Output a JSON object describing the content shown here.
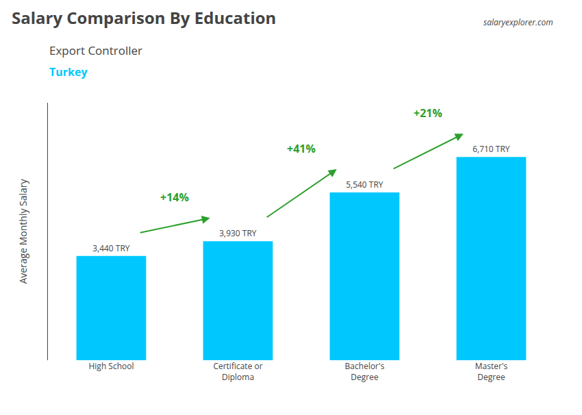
{
  "chart_data": {
    "type": "bar",
    "title": "Salary Comparison By Education",
    "subtitle": "Export Controller",
    "ylabel": "Average Monthly Salary",
    "categories": [
      "High School",
      "Certificate or\nDiploma",
      "Bachelor's\nDegree",
      "Master's\nDegree"
    ],
    "values": [
      3440,
      3930,
      5540,
      6710
    ],
    "value_labels": [
      "3,440 TRY",
      "3,930 TRY",
      "5,540 TRY",
      "6,710 TRY"
    ],
    "data_labels": true,
    "color": "#00C8FF",
    "ylim": [
      0,
      8500
    ],
    "grid": false,
    "tick_labels": "x",
    "annotations": [
      {
        "text": "+14%",
        "from": 0,
        "to": 1
      },
      {
        "text": "+41%",
        "from": 1,
        "to": 2
      },
      {
        "text": "+21%",
        "from": 2,
        "to": 3
      },
      {
        "text": "Turkey"
      },
      {
        "text": "salaryexplorer.com"
      }
    ]
  }
}
